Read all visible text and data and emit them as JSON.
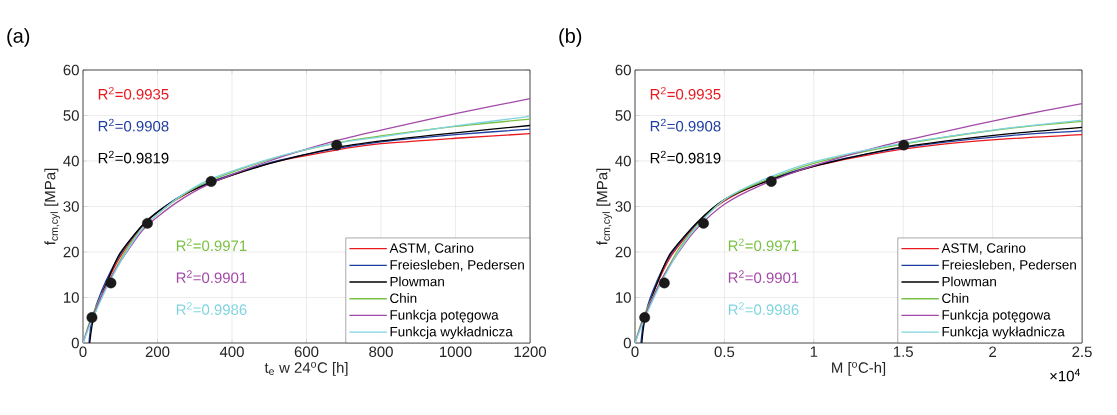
{
  "chart_data": [
    {
      "type": "line",
      "title": "(a)",
      "xlabel": "t$_{e}$ w 24$^{o}$C [h]",
      "ylabel": "f$_{cm,cyl}$ [MPa]",
      "xlim": [
        0,
        1200
      ],
      "ylim": [
        0,
        60
      ],
      "xticks": [
        0,
        200,
        400,
        600,
        800,
        1000,
        1200
      ],
      "yticks": [
        0,
        10,
        20,
        30,
        40,
        50,
        60
      ],
      "grid": true,
      "legend": "bottom right",
      "annotations": [
        "R$^{2}$=0.9935",
        "R$^{2}$=0.9908",
        "R$^{2}$=0.9819",
        "R$^{2}$=0.9971",
        "R$^{2}$=0.9901",
        "R$^{2}$=0.9986"
      ],
      "series": [
        {
          "name": "ASTM, Carino",
          "color": "#e8191f",
          "x": [
            50,
            100,
            168,
            250,
            336,
            500,
            672,
            800,
            1000,
            1200
          ],
          "values": [
            11,
            19,
            26.5,
            31.5,
            35,
            39.5,
            42.3,
            43.8,
            45,
            46
          ]
        },
        {
          "name": "Freiesleben, Pedersen",
          "color": "#1f3fa0",
          "x": [
            16,
            24,
            50,
            100,
            168,
            250,
            336,
            500,
            672,
            800,
            1000,
            1200
          ],
          "values": [
            0,
            5,
            11.5,
            19.5,
            26.6,
            31.7,
            35.2,
            39.6,
            42.6,
            44.2,
            45.8,
            47
          ]
        },
        {
          "name": "Plowman",
          "color": "#000000",
          "x": [
            18,
            30,
            70,
            100,
            168,
            250,
            336,
            500,
            672,
            800,
            1000,
            1200
          ],
          "values": [
            0,
            6,
            14.5,
            19.8,
            26.6,
            31.6,
            35,
            39.4,
            42.8,
            44.4,
            46.2,
            47.8
          ]
        },
        {
          "name": "Chin",
          "color": "#7ac143",
          "x": [
            0,
            24,
            72,
            120,
            168,
            250,
            336,
            500,
            672,
            800,
            1000,
            1200
          ],
          "values": [
            0,
            6,
            14,
            21,
            26,
            31.5,
            35.5,
            40.3,
            43.8,
            45.5,
            47.6,
            49.2
          ]
        },
        {
          "name": "Funkcja potęgowa",
          "color": "#a34aa8",
          "x": [
            0,
            24,
            72,
            120,
            168,
            250,
            336,
            500,
            672,
            800,
            1000,
            1200
          ],
          "values": [
            0,
            5.5,
            14,
            20.3,
            25.5,
            30.8,
            34.8,
            40,
            44.3,
            46.8,
            50.4,
            53.7
          ]
        },
        {
          "name": "Funkcja wykładnicza",
          "color": "#80d4e0",
          "x": [
            0,
            24,
            72,
            120,
            168,
            250,
            336,
            500,
            672,
            800,
            1000,
            1200
          ],
          "values": [
            0,
            5,
            13.5,
            20.5,
            26,
            31.6,
            35.8,
            40.4,
            43.8,
            45.3,
            47.7,
            49.8
          ]
        },
        {
          "type": "scatter",
          "marker": "circle",
          "color": "#1a1a1a",
          "x": [
            24,
            75,
            173,
            344,
            681
          ],
          "values": [
            5.6,
            13.2,
            26.3,
            35.5,
            43.5
          ]
        }
      ]
    },
    {
      "type": "line",
      "title": "(b)",
      "xlabel": "M  [$^{o}$C-h]",
      "ylabel": "f$_{cm,cyl}$ [MPa]",
      "xlim": [
        0,
        2.5
      ],
      "ylim": [
        0,
        60
      ],
      "xticks": [
        0,
        0.5,
        1,
        1.5,
        2,
        2.5
      ],
      "yticks": [
        0,
        10,
        20,
        30,
        40,
        50,
        60
      ],
      "grid": true,
      "legend": "bottom right",
      "annotations": [
        "R$^{2}$=0.9935",
        "R$^{2}$=0.9908",
        "R$^{2}$=0.9819",
        "R$^{2}$=0.9971",
        "R$^{2}$=0.9901",
        "R$^{2}$=0.9986",
        "×10$^{4}$"
      ],
      "series": [
        {
          "name": "ASTM, Carino",
          "color": "#e8191f",
          "x": [
            0.1,
            0.2,
            0.35,
            0.5,
            0.7,
            1,
            1.4,
            1.7,
            2.1,
            2.5
          ],
          "values": [
            11,
            19,
            26.3,
            31.2,
            35,
            38.8,
            42,
            43.6,
            44.9,
            45.8
          ]
        },
        {
          "name": "Freiesleben, Pedersen",
          "color": "#1f3fa0",
          "x": [
            0.033,
            0.05,
            0.1,
            0.2,
            0.35,
            0.5,
            0.7,
            1,
            1.4,
            1.7,
            2.1,
            2.5
          ],
          "values": [
            0,
            5,
            11.5,
            19.5,
            26.5,
            31.5,
            35.2,
            39,
            42.3,
            44,
            45.6,
            46.6
          ]
        },
        {
          "name": "Plowman",
          "color": "#000000",
          "x": [
            0.038,
            0.06,
            0.14,
            0.2,
            0.35,
            0.5,
            0.7,
            1,
            1.4,
            1.7,
            2.1,
            2.5
          ],
          "values": [
            0,
            6,
            14.8,
            19.8,
            26.6,
            31.5,
            35,
            38.8,
            42.4,
            44.2,
            46,
            47.4
          ]
        },
        {
          "name": "Chin",
          "color": "#7ac143",
          "x": [
            0,
            0.05,
            0.15,
            0.25,
            0.35,
            0.5,
            0.7,
            1,
            1.4,
            1.7,
            2.1,
            2.5
          ],
          "values": [
            0,
            6,
            14,
            21,
            26,
            31.5,
            35.3,
            39.5,
            43,
            45,
            47.2,
            48.7
          ]
        },
        {
          "name": "Funkcja potęgowa",
          "color": "#a34aa8",
          "x": [
            0,
            0.05,
            0.15,
            0.25,
            0.35,
            0.5,
            0.7,
            1,
            1.4,
            1.7,
            2.1,
            2.5
          ],
          "values": [
            0,
            5.5,
            14,
            20.3,
            25.3,
            30.5,
            34.6,
            39,
            43.5,
            46.2,
            49.6,
            52.6
          ]
        },
        {
          "name": "Funkcja wykładnicza",
          "color": "#80d4e0",
          "x": [
            0,
            0.05,
            0.15,
            0.25,
            0.35,
            0.5,
            0.7,
            1,
            1.4,
            1.7,
            2.1,
            2.5
          ],
          "values": [
            0,
            5,
            13.5,
            20.5,
            25.8,
            31.5,
            35.6,
            39.8,
            43.2,
            45.1,
            47.3,
            49
          ]
        },
        {
          "type": "scatter",
          "marker": "circle",
          "color": "#1a1a1a",
          "x": [
            0.054,
            0.164,
            0.383,
            0.762,
            1.503
          ],
          "values": [
            5.6,
            13.2,
            26.3,
            35.5,
            43.5
          ]
        }
      ]
    }
  ]
}
